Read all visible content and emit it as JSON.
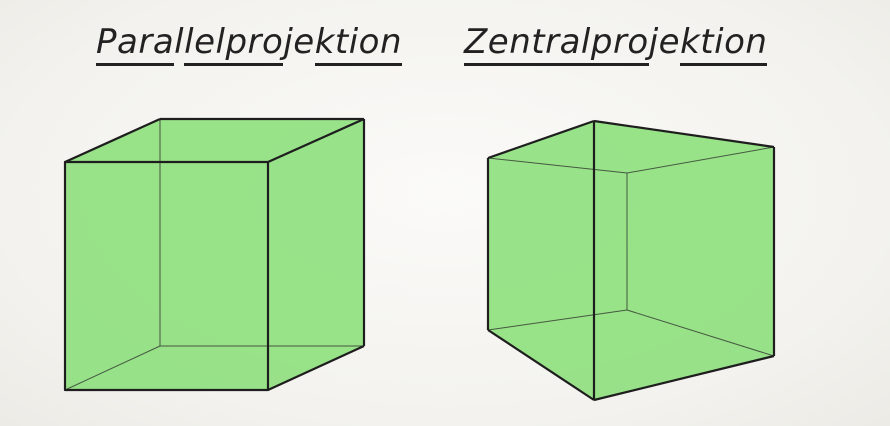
{
  "titles": {
    "left": {
      "parts": [
        "Para",
        "l",
        "l",
        "el",
        "pro",
        "je",
        "ktion"
      ],
      "text": "Parallelprojektion"
    },
    "right": {
      "parts": [
        "Zentral",
        "pro",
        "je",
        "ktion"
      ],
      "text": "Zentralprojektion"
    }
  },
  "colors": {
    "cube_fill": "#8fe07f",
    "edge": "#1e1e1e",
    "background": "#f4f3f0"
  }
}
